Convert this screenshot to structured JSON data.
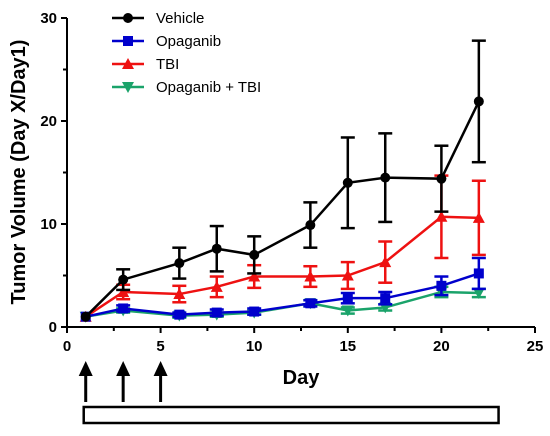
{
  "chart_data": {
    "type": "line",
    "title": "",
    "xlabel": "Day",
    "ylabel": "Tumor Volume (Day X/Day1)",
    "xlim": [
      0,
      25
    ],
    "ylim": [
      0,
      30
    ],
    "xticks": [
      "0",
      "5",
      "10",
      "15",
      "20",
      "25"
    ],
    "yticks": [
      "0",
      "10",
      "20",
      "30"
    ],
    "grid": false,
    "legend_position": "top-left",
    "series": [
      {
        "name": "Vehicle",
        "color": "#000000",
        "marker": "circle",
        "x": [
          1,
          3,
          6,
          8,
          10,
          13,
          15,
          17,
          20,
          22
        ],
        "y": [
          1,
          4.6,
          6.2,
          7.6,
          7.0,
          9.9,
          14.0,
          14.5,
          14.4,
          21.9
        ],
        "err": [
          0,
          1.0,
          1.5,
          2.2,
          1.8,
          2.2,
          4.4,
          4.3,
          3.2,
          5.9
        ]
      },
      {
        "name": "Opaganib",
        "color": "#0000cc",
        "marker": "square",
        "x": [
          1,
          3,
          6,
          8,
          10,
          13,
          15,
          17,
          20,
          22
        ],
        "y": [
          1,
          1.8,
          1.2,
          1.4,
          1.5,
          2.3,
          2.8,
          2.8,
          4.0,
          5.2
        ],
        "err": [
          0,
          0.3,
          0.2,
          0.3,
          0.3,
          0.3,
          0.5,
          0.6,
          0.9,
          1.5
        ]
      },
      {
        "name": "TBI",
        "color": "#ee1111",
        "marker": "triangle-up",
        "x": [
          1,
          3,
          6,
          8,
          10,
          13,
          15,
          17,
          20,
          22
        ],
        "y": [
          1,
          3.4,
          3.2,
          3.9,
          4.9,
          4.9,
          5.0,
          6.3,
          10.7,
          10.6
        ],
        "err": [
          0,
          0.7,
          0.8,
          1.0,
          1.1,
          1.0,
          1.3,
          2.0,
          4.0,
          3.6
        ]
      },
      {
        "name": "Opaganib + TBI",
        "color": "#1aa36a",
        "marker": "triangle-down",
        "x": [
          1,
          3,
          6,
          8,
          10,
          13,
          15,
          17,
          20,
          22
        ],
        "y": [
          1,
          1.6,
          1.1,
          1.2,
          1.4,
          2.3,
          1.6,
          1.9,
          3.4,
          3.3
        ],
        "err": [
          0,
          0.2,
          0.2,
          0.2,
          0.2,
          0.3,
          0.3,
          0.3,
          0.5,
          0.4
        ]
      }
    ],
    "annotations": {
      "arrow_days": [
        1,
        3,
        5
      ],
      "treatment_bar_days": [
        1,
        23
      ]
    }
  }
}
